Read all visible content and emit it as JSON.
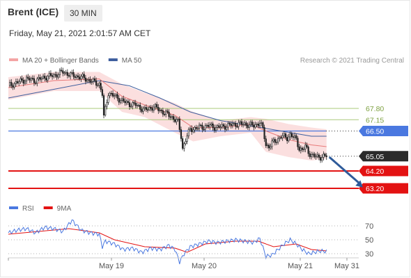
{
  "header": {
    "instrument": "Brent (ICE)",
    "timeframe": "30 MIN",
    "datetime": "Friday, May 21, 2021 2:01:57 AM CET"
  },
  "copyright": "Research © 2021 Trading Central",
  "colors": {
    "bollinger": "#f4a4a4",
    "ma20": "#e87a7a",
    "ma50": "#3f5f9e",
    "resistance": "#a9c97a",
    "pivot": "#4a78e0",
    "support": "#e31212",
    "current": "#2b2b2b",
    "arrow": "#2f5b9a",
    "rsi": "#4a78e0",
    "rsi_ma": "#e31212"
  },
  "chart_data": [
    {
      "type": "candlestick",
      "legend": [
        {
          "name": "MA 20 + Bollinger Bands",
          "color": "#f4a4a4"
        },
        {
          "name": "MA 50",
          "color": "#3f5f9e"
        }
      ],
      "x_ticks": [
        "May 19",
        "May 20",
        "May 21",
        "May 31"
      ],
      "ylim": [
        62.6,
        70.2
      ],
      "levels": [
        {
          "label": "67.80",
          "value": 67.8,
          "kind": "resistance",
          "style": "line"
        },
        {
          "label": "67.15",
          "value": 67.15,
          "kind": "resistance",
          "style": "line"
        },
        {
          "label": "66.50",
          "value": 66.5,
          "kind": "pivot",
          "style": "box"
        },
        {
          "label": "65.05",
          "value": 65.05,
          "kind": "current",
          "style": "box"
        },
        {
          "label": "64.20",
          "value": 64.2,
          "kind": "support",
          "style": "box"
        },
        {
          "label": "63.20",
          "value": 63.2,
          "kind": "support",
          "style": "box"
        }
      ],
      "close_path": [
        [
          0,
          69.1
        ],
        [
          6,
          69.3
        ],
        [
          12,
          69.5
        ],
        [
          18,
          69.4
        ],
        [
          24,
          69.6
        ],
        [
          30,
          69.7
        ],
        [
          36,
          69.9
        ],
        [
          42,
          69.7
        ],
        [
          48,
          69.6
        ],
        [
          54,
          69.4
        ],
        [
          60,
          69.2
        ],
        [
          62,
          68.6
        ],
        [
          63,
          67.3
        ],
        [
          66,
          68.7
        ],
        [
          72,
          68.4
        ],
        [
          78,
          68.1
        ],
        [
          84,
          68.0
        ],
        [
          90,
          67.7
        ],
        [
          96,
          67.9
        ],
        [
          102,
          67.6
        ],
        [
          108,
          67.3
        ],
        [
          112,
          67.0
        ],
        [
          114,
          66.2
        ],
        [
          115,
          65.5
        ],
        [
          117,
          66.0
        ],
        [
          120,
          66.6
        ],
        [
          126,
          66.7
        ],
        [
          132,
          66.8
        ],
        [
          138,
          66.7
        ],
        [
          144,
          66.8
        ],
        [
          150,
          66.9
        ],
        [
          156,
          66.9
        ],
        [
          162,
          66.8
        ],
        [
          166,
          67.0
        ],
        [
          168,
          66.6
        ],
        [
          170,
          65.7
        ],
        [
          172,
          65.6
        ],
        [
          174,
          65.8
        ],
        [
          176,
          65.9
        ],
        [
          180,
          66.2
        ],
        [
          184,
          66.1
        ],
        [
          186,
          66.3
        ],
        [
          190,
          66.0
        ],
        [
          192,
          65.5
        ],
        [
          194,
          65.4
        ],
        [
          196,
          65.6
        ],
        [
          198,
          65.3
        ],
        [
          200,
          65.1
        ],
        [
          204,
          65.0
        ],
        [
          210,
          65.05
        ]
      ],
      "ma50_path": [
        [
          0,
          68.4
        ],
        [
          30,
          68.9
        ],
        [
          60,
          69.4
        ],
        [
          80,
          69.1
        ],
        [
          100,
          68.4
        ],
        [
          120,
          67.6
        ],
        [
          140,
          67.1
        ],
        [
          160,
          66.8
        ],
        [
          180,
          66.5
        ],
        [
          200,
          66.2
        ],
        [
          210,
          66.2
        ]
      ],
      "ma20_path": [
        [
          0,
          69.0
        ],
        [
          30,
          69.4
        ],
        [
          60,
          69.5
        ],
        [
          75,
          68.5
        ],
        [
          90,
          68.0
        ],
        [
          110,
          67.4
        ],
        [
          122,
          66.7
        ],
        [
          140,
          66.7
        ],
        [
          160,
          66.9
        ],
        [
          170,
          66.5
        ],
        [
          185,
          66.0
        ],
        [
          200,
          65.7
        ],
        [
          210,
          65.6
        ]
      ],
      "bb_upper_path": [
        [
          0,
          69.6
        ],
        [
          30,
          69.9
        ],
        [
          60,
          69.9
        ],
        [
          75,
          69.2
        ],
        [
          90,
          68.7
        ],
        [
          110,
          68.1
        ],
        [
          122,
          67.6
        ],
        [
          140,
          67.1
        ],
        [
          160,
          67.3
        ],
        [
          170,
          67.2
        ],
        [
          185,
          66.9
        ],
        [
          200,
          66.7
        ],
        [
          210,
          66.6
        ]
      ],
      "bb_lower_path": [
        [
          0,
          68.3
        ],
        [
          30,
          68.8
        ],
        [
          60,
          68.8
        ],
        [
          75,
          67.6
        ],
        [
          90,
          67.3
        ],
        [
          110,
          66.4
        ],
        [
          122,
          65.9
        ],
        [
          140,
          66.2
        ],
        [
          160,
          66.4
        ],
        [
          170,
          65.3
        ],
        [
          185,
          65.0
        ],
        [
          200,
          64.8
        ],
        [
          210,
          64.9
        ]
      ],
      "forecast_arrow": {
        "from": [
          210,
          65.0
        ],
        "to": [
          234,
          63.25
        ]
      }
    },
    {
      "type": "line",
      "legend": [
        {
          "name": "RSI",
          "color": "#4a78e0"
        },
        {
          "name": "9MA",
          "color": "#e31212"
        }
      ],
      "y_ticks": [
        "70",
        "50",
        "30"
      ],
      "ylim": [
        15,
        85
      ],
      "rsi_path": [
        [
          0,
          60
        ],
        [
          6,
          64
        ],
        [
          12,
          66
        ],
        [
          18,
          60
        ],
        [
          24,
          68
        ],
        [
          30,
          66
        ],
        [
          36,
          62
        ],
        [
          42,
          78
        ],
        [
          48,
          64
        ],
        [
          54,
          60
        ],
        [
          60,
          58
        ],
        [
          62,
          40
        ],
        [
          64,
          48
        ],
        [
          70,
          44
        ],
        [
          76,
          36
        ],
        [
          82,
          38
        ],
        [
          88,
          32
        ],
        [
          94,
          38
        ],
        [
          100,
          36
        ],
        [
          106,
          42
        ],
        [
          110,
          36
        ],
        [
          113,
          18
        ],
        [
          116,
          30
        ],
        [
          120,
          40
        ],
        [
          126,
          44
        ],
        [
          132,
          48
        ],
        [
          138,
          46
        ],
        [
          144,
          48
        ],
        [
          150,
          50
        ],
        [
          156,
          48
        ],
        [
          162,
          46
        ],
        [
          166,
          52
        ],
        [
          170,
          26
        ],
        [
          174,
          28
        ],
        [
          178,
          36
        ],
        [
          182,
          44
        ],
        [
          186,
          50
        ],
        [
          190,
          44
        ],
        [
          194,
          36
        ],
        [
          198,
          30
        ],
        [
          202,
          32
        ],
        [
          206,
          34
        ],
        [
          210,
          33
        ]
      ],
      "ma9_path": [
        [
          0,
          58
        ],
        [
          20,
          62
        ],
        [
          40,
          66
        ],
        [
          60,
          60
        ],
        [
          70,
          50
        ],
        [
          90,
          40
        ],
        [
          110,
          38
        ],
        [
          118,
          32
        ],
        [
          130,
          44
        ],
        [
          150,
          48
        ],
        [
          165,
          48
        ],
        [
          175,
          40
        ],
        [
          190,
          44
        ],
        [
          200,
          36
        ],
        [
          210,
          34
        ]
      ]
    }
  ]
}
